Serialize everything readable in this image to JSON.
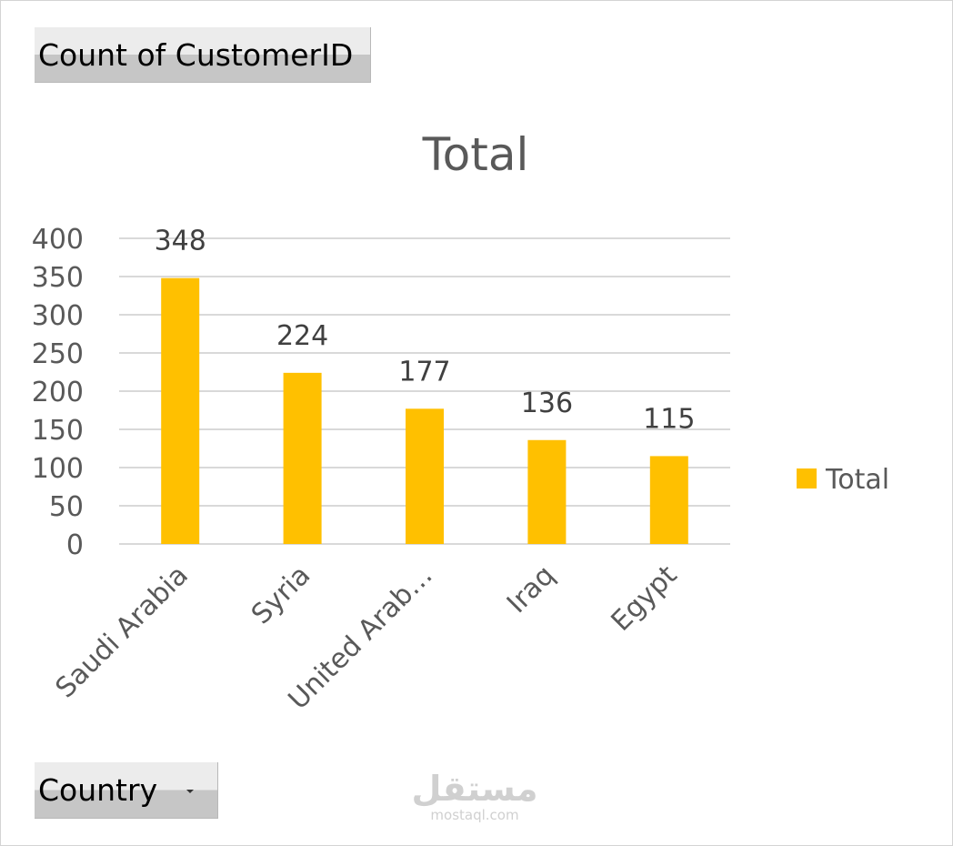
{
  "pivot": {
    "value_field": "Count of CustomerID",
    "axis_field": "Country"
  },
  "watermark": {
    "logo": "مستقل",
    "url": "mostaql.com"
  },
  "colors": {
    "bar": "#FFC000",
    "gridline": "#d9d9d9",
    "text": "#595959"
  },
  "chart_data": {
    "type": "bar",
    "title": "Total",
    "categories": [
      "Saudi Arabia",
      "Syria",
      "United Arab…",
      "Iraq",
      "Egypt"
    ],
    "series": [
      {
        "name": "Total",
        "values": [
          348,
          224,
          177,
          136,
          115
        ]
      }
    ],
    "ylim": [
      0,
      400
    ],
    "yticks": [
      0,
      50,
      100,
      150,
      200,
      250,
      300,
      350,
      400
    ],
    "grid": true,
    "data_labels": true,
    "legend_position": "right"
  }
}
